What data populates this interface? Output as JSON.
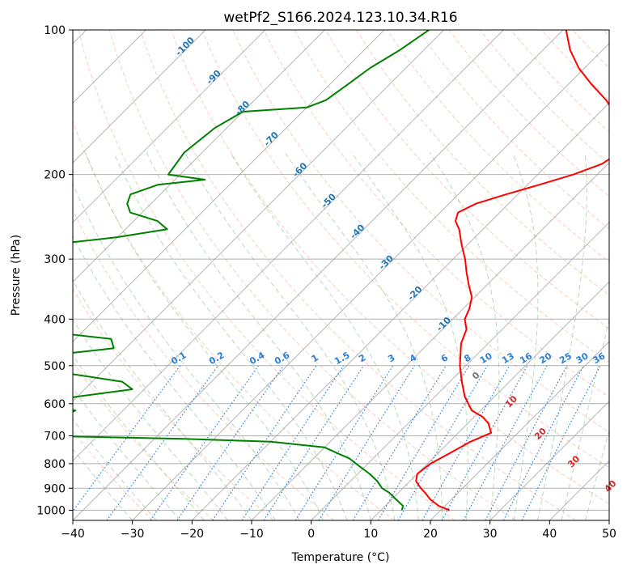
{
  "chart_data": {
    "type": "line",
    "title": "wetPf2_S166.2024.123.10.34.R16",
    "xlabel": "Temperature (°C)",
    "ylabel": "Pressure (hPa)",
    "xlim": [
      -40,
      50
    ],
    "ylim": [
      1050,
      100
    ],
    "y_scale": "log",
    "skew": "skew-T",
    "grid": true,
    "x_ticks": [
      "−40",
      "−30",
      "−20",
      "−10",
      "0",
      "10",
      "20",
      "30",
      "40",
      "50"
    ],
    "x_tick_values": [
      -40,
      -30,
      -20,
      -10,
      0,
      10,
      20,
      30,
      40,
      50
    ],
    "y_ticks": [
      "100",
      "200",
      "300",
      "400",
      "500",
      "600",
      "700",
      "800",
      "900",
      "1000"
    ],
    "y_tick_values": [
      100,
      200,
      300,
      400,
      500,
      600,
      700,
      800,
      900,
      1000
    ],
    "series": [
      {
        "color": "#ff0000",
        "role": "temperature",
        "points": [
          [
            1000,
            21.5
          ],
          [
            980,
            19.0
          ],
          [
            950,
            16.5
          ],
          [
            920,
            14.5
          ],
          [
            900,
            13.0
          ],
          [
            870,
            11.0
          ],
          [
            840,
            10.0
          ],
          [
            800,
            10.5
          ],
          [
            760,
            12.0
          ],
          [
            720,
            13.5
          ],
          [
            690,
            15.5
          ],
          [
            660,
            13.5
          ],
          [
            640,
            11.5
          ],
          [
            620,
            8.5
          ],
          [
            580,
            5.0
          ],
          [
            540,
            2.0
          ],
          [
            500,
            -1.0
          ],
          [
            450,
            -4.5
          ],
          [
            420,
            -6.0
          ],
          [
            400,
            -8.0
          ],
          [
            380,
            -9.0
          ],
          [
            360,
            -10.5
          ],
          [
            340,
            -13.0
          ],
          [
            320,
            -15.5
          ],
          [
            300,
            -18.0
          ],
          [
            280,
            -21.0
          ],
          [
            260,
            -24.0
          ],
          [
            250,
            -26.0
          ],
          [
            240,
            -27.0
          ],
          [
            230,
            -25.5
          ],
          [
            220,
            -22.0
          ],
          [
            210,
            -18.0
          ],
          [
            200,
            -14.0
          ],
          [
            190,
            -11.0
          ],
          [
            180,
            -10.0
          ],
          [
            170,
            -11.0
          ],
          [
            160,
            -13.5
          ],
          [
            150,
            -17.0
          ],
          [
            140,
            -21.0
          ],
          [
            130,
            -26.0
          ],
          [
            120,
            -31.0
          ],
          [
            110,
            -35.5
          ],
          [
            100,
            -39.5
          ]
        ]
      },
      {
        "color": "#008000",
        "role": "dewpoint",
        "points": [
          [
            1000,
            13.5
          ],
          [
            980,
            13.0
          ],
          [
            960,
            11.5
          ],
          [
            940,
            10.0
          ],
          [
            920,
            8.5
          ],
          [
            900,
            6.5
          ],
          [
            870,
            4.5
          ],
          [
            840,
            2.0
          ],
          [
            810,
            -1.0
          ],
          [
            780,
            -4.0
          ],
          [
            760,
            -7.0
          ],
          [
            740,
            -10.0
          ],
          [
            720,
            -20.0
          ],
          [
            710,
            -35.0
          ],
          [
            700,
            -60.0
          ],
          [
            690,
            -62.0
          ],
          [
            670,
            -56.0
          ],
          [
            650,
            -60.0
          ],
          [
            620,
            -58.0
          ],
          [
            600,
            -66.0
          ],
          [
            580,
            -60.0
          ],
          [
            560,
            -52.0
          ],
          [
            540,
            -55.0
          ],
          [
            520,
            -65.0
          ],
          [
            500,
            -76.0
          ],
          [
            490,
            -80.0
          ],
          [
            480,
            -74.0
          ],
          [
            460,
            -62.0
          ],
          [
            440,
            -64.0
          ],
          [
            420,
            -80.0
          ],
          [
            400,
            -94.0
          ],
          [
            380,
            -90.0
          ],
          [
            360,
            -92.0
          ],
          [
            340,
            -100.0
          ],
          [
            320,
            -98.0
          ],
          [
            300,
            -95.0
          ],
          [
            280,
            -90.0
          ],
          [
            270,
            -80.0
          ],
          [
            260,
            -73.0
          ],
          [
            250,
            -76.0
          ],
          [
            240,
            -82.0
          ],
          [
            230,
            -84.0
          ],
          [
            220,
            -85.0
          ],
          [
            210,
            -82.0
          ],
          [
            205,
            -75.0
          ],
          [
            200,
            -82.0
          ],
          [
            180,
            -83.0
          ],
          [
            160,
            -82.0
          ],
          [
            148,
            -80.0
          ],
          [
            145,
            -70.0
          ],
          [
            140,
            -68.0
          ],
          [
            130,
            -67.0
          ],
          [
            120,
            -66.0
          ],
          [
            110,
            -64.0
          ],
          [
            100,
            -62.5
          ]
        ]
      }
    ],
    "mixing_ratio_labels": [
      "0.1",
      "0.2",
      "0.4",
      "0.6",
      "1",
      "1.5",
      "2",
      "3",
      "4",
      "6",
      "8",
      "10",
      "13",
      "16",
      "20",
      "25",
      "30",
      "36"
    ],
    "mixing_ratio_values": [
      0.1,
      0.2,
      0.4,
      0.6,
      1,
      1.5,
      2,
      3,
      4,
      6,
      8,
      10,
      13,
      16,
      20,
      25,
      30,
      36
    ],
    "isotherm_labels": [
      "-100",
      "-90",
      "-80",
      "-70",
      "-60",
      "-50",
      "-40",
      "-30",
      "-20",
      "-10"
    ],
    "isotherm_values": [
      -100,
      -90,
      -80,
      -70,
      -60,
      -50,
      -40,
      -30,
      -20,
      -10
    ],
    "moist_adiabat_labels": [
      "0",
      "10",
      "20",
      "30",
      "40"
    ],
    "moist_adiabat_values": [
      0,
      10,
      20,
      30,
      40
    ],
    "colors": {
      "temperature": "#ff0000",
      "dewpoint": "#008000",
      "isotherm": "#9e9e9e",
      "dry_adiabat": "#f4a582",
      "moist_adiabat": "#86c586",
      "mixing_ratio": "#2a7fd6",
      "isotherm_label": "#1f77b4",
      "moist_label": "#d62728",
      "zero_label": "#777777"
    }
  }
}
